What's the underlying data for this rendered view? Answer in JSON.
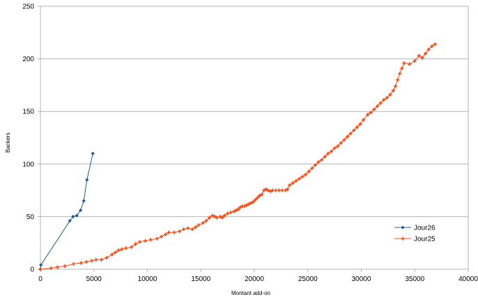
{
  "chart_data": {
    "type": "line",
    "xlabel": "Montant add-on",
    "ylabel": "Backers",
    "xlim": [
      0,
      40000
    ],
    "ylim": [
      0,
      250
    ],
    "x_ticks": [
      0,
      5000,
      10000,
      15000,
      20000,
      25000,
      30000,
      35000,
      40000
    ],
    "y_ticks": [
      0,
      50,
      100,
      150,
      200,
      250
    ],
    "grid": "horizontal",
    "legend_position": "right",
    "series": [
      {
        "name": "Jour26",
        "color": "#1f5b9a",
        "marker": "diamond",
        "points": [
          [
            0,
            0
          ],
          [
            50,
            4
          ],
          [
            2750,
            46
          ],
          [
            3050,
            50
          ],
          [
            3400,
            51
          ],
          [
            3750,
            56
          ],
          [
            4050,
            65
          ],
          [
            4350,
            85
          ],
          [
            4900,
            110
          ]
        ]
      },
      {
        "name": "Jour25",
        "color": "#ff4a0f",
        "marker": "plus",
        "points": [
          [
            0,
            0
          ],
          [
            1000,
            1
          ],
          [
            1600,
            2
          ],
          [
            2300,
            3
          ],
          [
            3100,
            5
          ],
          [
            3800,
            6
          ],
          [
            4300,
            7
          ],
          [
            4800,
            8
          ],
          [
            5200,
            9
          ],
          [
            5700,
            9
          ],
          [
            6200,
            11
          ],
          [
            6700,
            14
          ],
          [
            7000,
            16
          ],
          [
            7300,
            18
          ],
          [
            7600,
            19
          ],
          [
            8000,
            20
          ],
          [
            8500,
            21
          ],
          [
            8900,
            24
          ],
          [
            9300,
            26
          ],
          [
            9800,
            27
          ],
          [
            10300,
            28
          ],
          [
            10900,
            29
          ],
          [
            11300,
            31
          ],
          [
            11700,
            33
          ],
          [
            12000,
            35
          ],
          [
            12500,
            35
          ],
          [
            13000,
            36
          ],
          [
            13400,
            38
          ],
          [
            13800,
            39
          ],
          [
            14200,
            38
          ],
          [
            14500,
            40
          ],
          [
            14800,
            42
          ],
          [
            15200,
            44
          ],
          [
            15500,
            46
          ],
          [
            15800,
            49
          ],
          [
            16100,
            51
          ],
          [
            16300,
            50
          ],
          [
            16500,
            49
          ],
          [
            16800,
            50
          ],
          [
            17000,
            49
          ],
          [
            17200,
            51
          ],
          [
            17500,
            53
          ],
          [
            17800,
            54
          ],
          [
            18100,
            55
          ],
          [
            18300,
            56
          ],
          [
            18500,
            57
          ],
          [
            18700,
            59
          ],
          [
            18900,
            60
          ],
          [
            19100,
            60
          ],
          [
            19300,
            61
          ],
          [
            19500,
            62
          ],
          [
            19700,
            63
          ],
          [
            19900,
            64
          ],
          [
            20100,
            66
          ],
          [
            20300,
            68
          ],
          [
            20500,
            70
          ],
          [
            20700,
            71
          ],
          [
            20900,
            75
          ],
          [
            21100,
            76
          ],
          [
            21300,
            75
          ],
          [
            21500,
            74
          ],
          [
            21700,
            75
          ],
          [
            22000,
            75
          ],
          [
            22300,
            75
          ],
          [
            22600,
            75
          ],
          [
            22900,
            75
          ],
          [
            23100,
            76
          ],
          [
            23300,
            80
          ],
          [
            23600,
            82
          ],
          [
            23900,
            84
          ],
          [
            24200,
            86
          ],
          [
            24500,
            88
          ],
          [
            24800,
            90
          ],
          [
            25100,
            93
          ],
          [
            25400,
            96
          ],
          [
            25700,
            99
          ],
          [
            26000,
            102
          ],
          [
            26300,
            104
          ],
          [
            26600,
            107
          ],
          [
            26900,
            110
          ],
          [
            27200,
            112
          ],
          [
            27500,
            115
          ],
          [
            27800,
            117
          ],
          [
            28100,
            120
          ],
          [
            28400,
            123
          ],
          [
            28700,
            126
          ],
          [
            29000,
            129
          ],
          [
            29300,
            132
          ],
          [
            29600,
            135
          ],
          [
            29900,
            138
          ],
          [
            30200,
            142
          ],
          [
            30600,
            147
          ],
          [
            30900,
            149
          ],
          [
            31200,
            152
          ],
          [
            31500,
            155
          ],
          [
            31800,
            158
          ],
          [
            32100,
            161
          ],
          [
            32400,
            163
          ],
          [
            32700,
            166
          ],
          [
            33000,
            170
          ],
          [
            33200,
            174
          ],
          [
            33400,
            180
          ],
          [
            33600,
            186
          ],
          [
            33800,
            191
          ],
          [
            34000,
            196
          ],
          [
            34500,
            195
          ],
          [
            35000,
            198
          ],
          [
            35400,
            203
          ],
          [
            35700,
            201
          ],
          [
            36000,
            205
          ],
          [
            36300,
            209
          ],
          [
            36600,
            212
          ],
          [
            36900,
            214
          ]
        ]
      }
    ]
  }
}
